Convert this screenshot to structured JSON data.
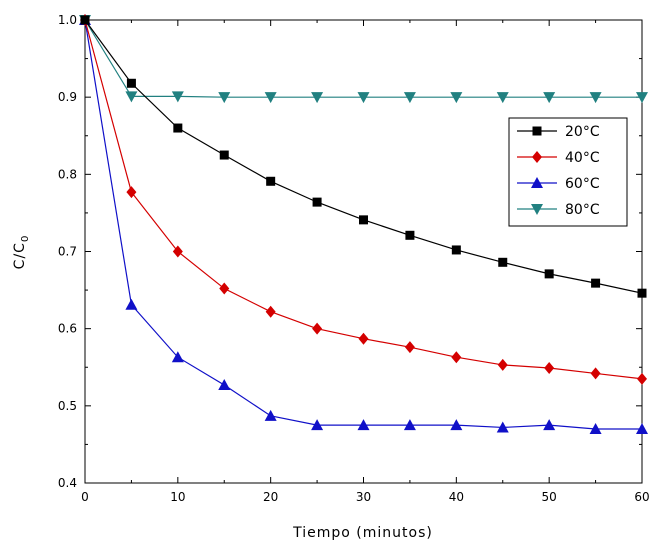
{
  "chart_data": {
    "type": "line",
    "title": "",
    "xlabel": "Tiempo (minutos)",
    "ylabel": "C/C",
    "ylabel_subscript": "0",
    "xlim": [
      0,
      60
    ],
    "ylim": [
      0.4,
      1.0
    ],
    "x_ticks": [
      "0",
      "10",
      "20",
      "30",
      "40",
      "50",
      "60"
    ],
    "y_ticks": [
      "0.4",
      "0.5",
      "0.6",
      "0.7",
      "0.8",
      "0.9",
      "1.0"
    ],
    "x_tick_values": [
      0,
      10,
      20,
      30,
      40,
      50,
      60
    ],
    "y_tick_values": [
      0.4,
      0.5,
      0.6,
      0.7,
      0.8,
      0.9,
      1.0
    ],
    "grid": false,
    "legend_position": "top-right",
    "x": [
      0,
      5,
      10,
      15,
      20,
      25,
      30,
      35,
      40,
      45,
      50,
      55,
      60
    ],
    "series": [
      {
        "name": "20°C",
        "color": "#000000",
        "marker": "square",
        "values": [
          1.0,
          0.918,
          0.86,
          0.825,
          0.791,
          0.764,
          0.741,
          0.721,
          0.702,
          0.686,
          0.671,
          0.659,
          0.646
        ]
      },
      {
        "name": "40°C",
        "color": "#d40000",
        "marker": "diamond",
        "values": [
          1.0,
          0.777,
          0.7,
          0.652,
          0.622,
          0.6,
          0.587,
          0.576,
          0.563,
          0.553,
          0.549,
          0.542,
          0.535
        ]
      },
      {
        "name": "60°C",
        "color": "#1010c8",
        "marker": "triangle-up",
        "values": [
          1.0,
          0.631,
          0.563,
          0.527,
          0.487,
          0.475,
          0.475,
          0.475,
          0.475,
          0.472,
          0.475,
          0.47,
          0.47
        ]
      },
      {
        "name": "80°C",
        "color": "#218080",
        "marker": "triangle-down",
        "values": [
          1.0,
          0.901,
          0.901,
          0.9,
          0.9,
          0.9,
          0.9,
          0.9,
          0.9,
          0.9,
          0.9,
          0.9,
          0.9
        ]
      }
    ]
  }
}
